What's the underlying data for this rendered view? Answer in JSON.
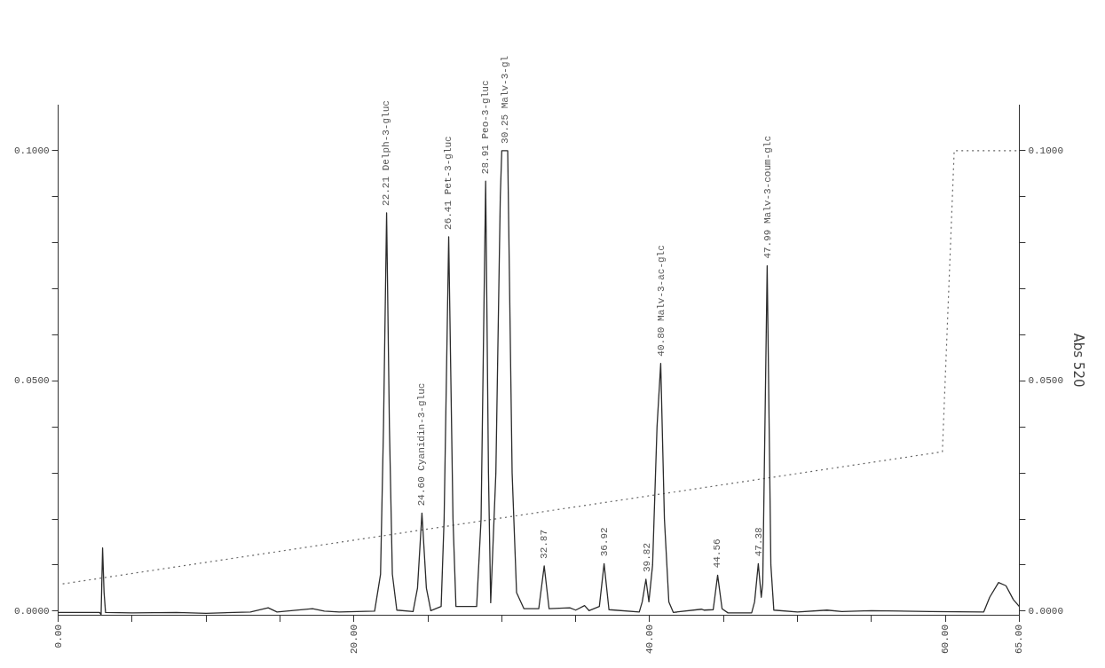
{
  "chart_data": {
    "type": "line",
    "y2label": "Abs 520",
    "marker": "none",
    "grid": false,
    "legend": false,
    "xlim": [
      0,
      65
    ],
    "xticks": [
      {
        "value": 0,
        "label": "0.00"
      },
      {
        "value": 5,
        "label": null
      },
      {
        "value": 10,
        "label": null
      },
      {
        "value": 15,
        "label": null
      },
      {
        "value": 20,
        "label": "20.00"
      },
      {
        "value": 25,
        "label": null
      },
      {
        "value": 30,
        "label": null
      },
      {
        "value": 35,
        "label": null
      },
      {
        "value": 40,
        "label": "40.00"
      },
      {
        "value": 45,
        "label": null
      },
      {
        "value": 50,
        "label": null
      },
      {
        "value": 55,
        "label": null
      },
      {
        "value": 60,
        "label": "60.00"
      },
      {
        "value": 65,
        "label": "65.00"
      }
    ],
    "ylim": [
      -0.001,
      0.11
    ],
    "yticks": [
      {
        "value": 0,
        "label": "0.0000"
      },
      {
        "value": 0.01,
        "label": null
      },
      {
        "value": 0.02,
        "label": null
      },
      {
        "value": 0.03,
        "label": null
      },
      {
        "value": 0.04,
        "label": null
      },
      {
        "value": 0.05,
        "label": "0.0500"
      },
      {
        "value": 0.06,
        "label": null
      },
      {
        "value": 0.07,
        "label": null
      },
      {
        "value": 0.08,
        "label": null
      },
      {
        "value": 0.09,
        "label": null
      },
      {
        "value": 0.1,
        "label": "0.1000"
      }
    ],
    "y2lim": [
      -0.001,
      0.11
    ],
    "y2ticks": [
      {
        "value": 0,
        "label": "0.0000"
      },
      {
        "value": 0.01,
        "label": null
      },
      {
        "value": 0.02,
        "label": null
      },
      {
        "value": 0.03,
        "label": null
      },
      {
        "value": 0.04,
        "label": null
      },
      {
        "value": 0.05,
        "label": "0.0500"
      },
      {
        "value": 0.06,
        "label": null
      },
      {
        "value": 0.07,
        "label": null
      },
      {
        "value": 0.08,
        "label": null
      },
      {
        "value": 0.09,
        "label": null
      },
      {
        "value": 0.1,
        "label": "0.1000"
      }
    ],
    "series": [
      {
        "color": "#2b2b2b",
        "line_style": "solid",
        "x": [
          0,
          2.8,
          2.9,
          3.0,
          3.1,
          3.2,
          5,
          8,
          10,
          13,
          14.2,
          14.8,
          17.2,
          18,
          19,
          21.4,
          21.8,
          22.0,
          22.21,
          22.4,
          22.6,
          22.9,
          24.0,
          24.3,
          24.6,
          24.9,
          25.2,
          25.9,
          26.1,
          26.41,
          26.7,
          26.9,
          28.3,
          28.6,
          28.91,
          29.1,
          29.25,
          29.6,
          29.9,
          30.0,
          30.4,
          30.7,
          31.0,
          31.5,
          32.5,
          32.87,
          33.2,
          34.6,
          35.0,
          35.6,
          35.9,
          36.6,
          36.92,
          37.25,
          39.3,
          39.5,
          39.75,
          39.95,
          40.2,
          40.5,
          40.75,
          41.0,
          41.3,
          41.6,
          43.5,
          43.7,
          44.3,
          44.6,
          44.9,
          45.3,
          46.9,
          47.1,
          47.35,
          47.55,
          47.65,
          47.95,
          48.2,
          48.4,
          50,
          52,
          53,
          55,
          59,
          62.6,
          63.0,
          63.6,
          64.1,
          64.6,
          65
        ],
        "values": [
          -0.0003,
          -0.0003,
          -0.0008,
          0.0137,
          0.004,
          -0.0003,
          -0.0004,
          -0.0003,
          -0.0005,
          -0.0002,
          0.0007,
          -0.0002,
          0.0005,
          0.0,
          -0.0002,
          0.0,
          0.008,
          0.04,
          0.0865,
          0.04,
          0.008,
          0.0002,
          -0.0001,
          0.005,
          0.0213,
          0.005,
          0.0001,
          0.001,
          0.02,
          0.0813,
          0.02,
          0.001,
          0.001,
          0.02,
          0.0934,
          0.03,
          0.0018,
          0.03,
          0.09,
          0.1,
          0.1,
          0.03,
          0.004,
          0.0005,
          0.0005,
          0.0098,
          0.0005,
          0.0007,
          0.0002,
          0.0012,
          0.0001,
          0.001,
          0.0103,
          0.0003,
          -0.0002,
          0.002,
          0.0069,
          0.002,
          0.01,
          0.04,
          0.0538,
          0.02,
          0.002,
          -0.0003,
          0.0004,
          0.0002,
          0.0003,
          0.0078,
          0.0005,
          -0.0004,
          -0.0004,
          0.002,
          0.0103,
          0.003,
          0.006,
          0.075,
          0.01,
          0.0002,
          -0.0002,
          0.0002,
          -0.0001,
          0.0001,
          -0.0001,
          -0.0002,
          0.003,
          0.0062,
          0.0055,
          0.0025,
          0.001
        ]
      },
      {
        "color": "#666666",
        "line_style": "dotted",
        "x": [
          0.3,
          59.8,
          60.6,
          65
        ],
        "values": [
          0.0059,
          0.0346,
          0.1,
          0.1
        ]
      }
    ],
    "annotations": [
      {
        "text": "22.21 Delph-3-gluc",
        "x": 22.21,
        "y": 0.0865
      },
      {
        "text": "24.60 Cyanidin-3-gluc",
        "x": 24.6,
        "y": 0.0213
      },
      {
        "text": "26.41 Pet-3-gluc",
        "x": 26.41,
        "y": 0.0813
      },
      {
        "text": "28.91 Peo-3-gluc",
        "x": 28.91,
        "y": 0.0934
      },
      {
        "text": "30.25 Malv-3-gl",
        "x": 30.25,
        "y": 0.1
      },
      {
        "text": "32.87",
        "x": 32.87,
        "y": 0.0098
      },
      {
        "text": "36.92",
        "x": 36.92,
        "y": 0.0103
      },
      {
        "text": "39.82",
        "x": 39.82,
        "y": 0.0069
      },
      {
        "text": "40.80 Malv-3-ac-glc",
        "x": 40.8,
        "y": 0.0538
      },
      {
        "text": "44.56",
        "x": 44.56,
        "y": 0.0078
      },
      {
        "text": "47.38",
        "x": 47.38,
        "y": 0.0103
      },
      {
        "text": "47.99 Malv-3-coum-glc",
        "x": 47.99,
        "y": 0.075
      }
    ]
  }
}
